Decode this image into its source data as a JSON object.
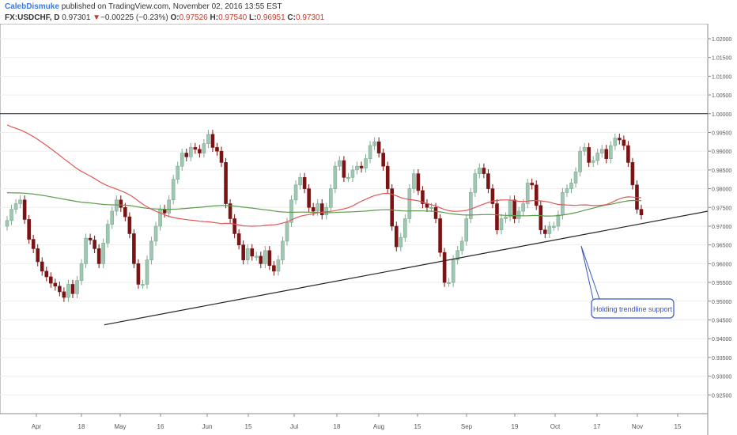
{
  "header": {
    "author": "CalebDismuke",
    "published_text": "published on TradingView.com, November 02, 2016 13:55 EST",
    "symbol": "FX:USDCHF, D",
    "last": "0.97301",
    "change_arrow": "▼",
    "change": "−0.00225 (−0.23%)",
    "o_label": "O:",
    "o_value": "0.97526",
    "h_label": "H:",
    "h_value": "0.97540",
    "l_label": "L:",
    "l_value": "0.96951",
    "c_label": "C:",
    "c_value": "0.97301"
  },
  "annotation": "Holding trendline support",
  "colors": {
    "bull": "#9fc8b4",
    "bear": "#7a1414",
    "ma_fast": "#e05757",
    "ma_slow": "#5d9a4c",
    "trendline": "#222222",
    "annotation": "#3b55c8",
    "grid": "#eeeeee"
  },
  "chart_data": {
    "type": "candlestick",
    "y_ticks": [
      "1.02000",
      "1.01500",
      "1.01000",
      "1.00500",
      "1.00000",
      "0.99500",
      "0.99000",
      "0.98500",
      "0.98000",
      "0.97500",
      "0.97000",
      "0.96500",
      "0.96000",
      "0.95500",
      "0.95000",
      "0.94500",
      "0.94000",
      "0.93500",
      "0.93000",
      "0.92500"
    ],
    "x_ticks": [
      "Apr",
      "18",
      "May",
      "16",
      "Jun",
      "15",
      "Jul",
      "18",
      "Aug",
      "15",
      "Sep",
      "19",
      "Oct",
      "17",
      "Nov",
      "15"
    ],
    "ylim": [
      0.92,
      1.024
    ],
    "horizontal_line": 1.0,
    "trendline": [
      [
        0.9437,
        0.974
      ]
    ],
    "series_close": [
      0.9715,
      0.9745,
      0.976,
      0.977,
      0.9718,
      0.9665,
      0.964,
      0.9605,
      0.958,
      0.9565,
      0.9548,
      0.954,
      0.9525,
      0.951,
      0.9545,
      0.952,
      0.9555,
      0.96,
      0.9668,
      0.9663,
      0.964,
      0.96,
      0.9655,
      0.9705,
      0.974,
      0.977,
      0.975,
      0.9725,
      0.968,
      0.96,
      0.9545,
      0.9545,
      0.961,
      0.966,
      0.97,
      0.9745,
      0.9735,
      0.977,
      0.9825,
      0.986,
      0.9895,
      0.9885,
      0.991,
      0.9905,
      0.9895,
      0.992,
      0.9945,
      0.991,
      0.99,
      0.987,
      0.976,
      0.972,
      0.968,
      0.965,
      0.961,
      0.964,
      0.962,
      0.962,
      0.96,
      0.9635,
      0.9595,
      0.958,
      0.961,
      0.966,
      0.971,
      0.977,
      0.981,
      0.983,
      0.98,
      0.975,
      0.974,
      0.976,
      0.973,
      0.975,
      0.98,
      0.986,
      0.9875,
      0.983,
      0.983,
      0.985,
      0.986,
      0.9855,
      0.988,
      0.9915,
      0.9925,
      0.9895,
      0.986,
      0.98,
      0.97,
      0.9645,
      0.967,
      0.972,
      0.98,
      0.984,
      0.9795,
      0.976,
      0.975,
      0.975,
      0.972,
      0.963,
      0.955,
      0.955,
      0.961,
      0.9635,
      0.966,
      0.972,
      0.979,
      0.984,
      0.9855,
      0.984,
      0.98,
      0.976,
      0.969,
      0.972,
      0.9725,
      0.977,
      0.972,
      0.974,
      0.976,
      0.9815,
      0.981,
      0.9755,
      0.969,
      0.968,
      0.97,
      0.97,
      0.973,
      0.979,
      0.98,
      0.9815,
      0.9845,
      0.99,
      0.991,
      0.987,
      0.9875,
      0.9895,
      0.9905,
      0.988,
      0.9915,
      0.9935,
      0.993,
      0.9915,
      0.987,
      0.981,
      0.9745,
      0.973
    ]
  }
}
